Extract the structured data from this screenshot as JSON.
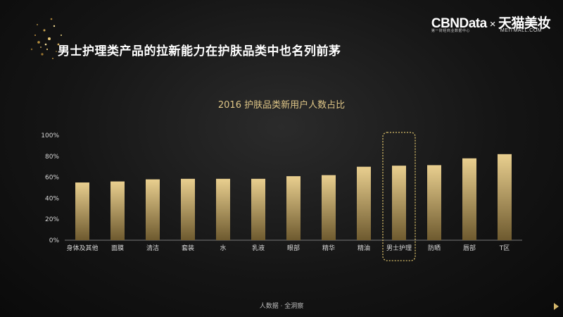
{
  "headline": "男士护理类产品的拉新能力在护肤品类中也名列前茅",
  "logo": {
    "brand": "CBNData",
    "times": "×",
    "partner": "天猫美妆",
    "brand_sub": "第一财经商业数据中心",
    "partner_sub": "MEITMALL.COM"
  },
  "footer": "人数据 · 全洞察",
  "colors": {
    "bar_top": "#e9cf8f",
    "bar_bottom": "#6e5a2f",
    "highlight_border": "#d9bf6a"
  },
  "chart_data": {
    "type": "bar",
    "title": "2016 护肤品类新用户人数占比",
    "categories": [
      "身体及其他",
      "面膜",
      "清洁",
      "套装",
      "水",
      "乳液",
      "眼部",
      "精华",
      "精油",
      "男士护理",
      "防晒",
      "唇部",
      "T区"
    ],
    "values": [
      55,
      56,
      58,
      58.5,
      58.5,
      58.5,
      61,
      62,
      70,
      71,
      71.5,
      78,
      82
    ],
    "ylim": [
      0,
      100
    ],
    "yticks": [
      "0%",
      "20%",
      "40%",
      "60%",
      "80%",
      "100%"
    ],
    "highlight": "男士护理",
    "grid": false,
    "legend": "none"
  }
}
